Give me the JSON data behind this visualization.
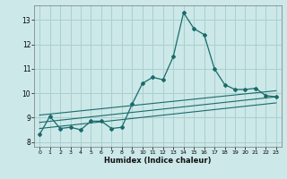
{
  "xlabel": "Humidex (Indice chaleur)",
  "bg_color": "#cce8e8",
  "grid_color": "#aacfcf",
  "line_color": "#1a6b6b",
  "xlim": [
    -0.5,
    23.5
  ],
  "ylim": [
    7.8,
    13.6
  ],
  "yticks": [
    8,
    9,
    10,
    11,
    12,
    13
  ],
  "xticks": [
    0,
    1,
    2,
    3,
    4,
    5,
    6,
    7,
    8,
    9,
    10,
    11,
    12,
    13,
    14,
    15,
    16,
    17,
    18,
    19,
    20,
    21,
    22,
    23
  ],
  "main_line": [
    [
      0,
      8.3
    ],
    [
      1,
      9.05
    ],
    [
      2,
      8.55
    ],
    [
      3,
      8.6
    ],
    [
      4,
      8.5
    ],
    [
      5,
      8.85
    ],
    [
      6,
      8.85
    ],
    [
      7,
      8.55
    ],
    [
      8,
      8.6
    ],
    [
      9,
      9.55
    ],
    [
      10,
      10.4
    ],
    [
      11,
      10.65
    ],
    [
      12,
      10.55
    ],
    [
      13,
      11.5
    ],
    [
      14,
      13.3
    ],
    [
      15,
      12.65
    ],
    [
      16,
      12.4
    ],
    [
      17,
      11.0
    ],
    [
      18,
      10.35
    ],
    [
      19,
      10.15
    ],
    [
      20,
      10.15
    ],
    [
      21,
      10.2
    ],
    [
      22,
      9.9
    ],
    [
      23,
      9.85
    ]
  ],
  "trend_lines": [
    {
      "x": [
        0,
        23
      ],
      "y": [
        9.1,
        10.1
      ]
    },
    {
      "x": [
        0,
        23
      ],
      "y": [
        8.8,
        9.85
      ]
    },
    {
      "x": [
        0,
        23
      ],
      "y": [
        8.55,
        9.6
      ]
    }
  ]
}
